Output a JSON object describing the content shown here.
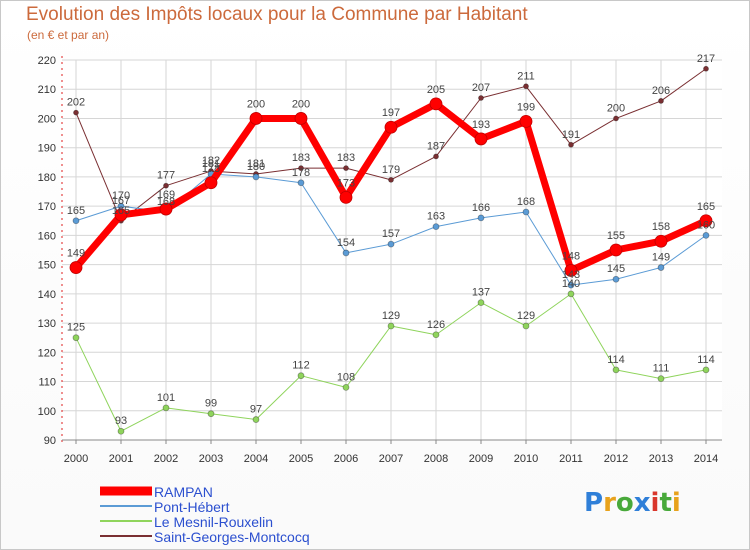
{
  "header": {
    "title": "Evolution des Impôts locaux pour la Commune par Habitant",
    "subtitle": "(en € et par an)"
  },
  "logo": {
    "text": "Proxiti",
    "colors": [
      "#2f7fd8",
      "#e8a21c",
      "#48a93a",
      "#2f7fd8",
      "#d9362b",
      "#48a93a",
      "#e8a21c"
    ]
  },
  "chart_data": {
    "type": "line",
    "title": "Evolution des Impôts locaux pour la Commune par Habitant",
    "subtitle": "(en € et par an)",
    "xlabel": "",
    "ylabel": "",
    "x": [
      "2000",
      "2001",
      "2002",
      "2003",
      "2004",
      "2005",
      "2006",
      "2007",
      "2008",
      "2009",
      "2010",
      "2011",
      "2012",
      "2013",
      "2014"
    ],
    "ylim": [
      90,
      220
    ],
    "yticks": [
      90,
      100,
      110,
      120,
      130,
      140,
      150,
      160,
      170,
      180,
      190,
      200,
      210,
      220
    ],
    "grid": true,
    "legend_position": "bottom-left",
    "series": [
      {
        "name": "Saint-Georges-Montcocq",
        "color": "#7a2f32",
        "width": 1,
        "marker": 2.5,
        "values": [
          202,
          165,
          177,
          182,
          181,
          183,
          183,
          179,
          187,
          207,
          211,
          191,
          200,
          206,
          217
        ]
      },
      {
        "name": "Le Mesnil-Rouxelin",
        "color": "#8fd45c",
        "width": 1,
        "marker": 3,
        "values": [
          125,
          93,
          101,
          99,
          97,
          112,
          108,
          129,
          126,
          137,
          129,
          140,
          114,
          111,
          114
        ]
      },
      {
        "name": "Pont-Hébert",
        "color": "#5b9bd5",
        "width": 1,
        "marker": 3,
        "values": [
          165,
          170,
          168,
          181,
          180,
          178,
          154,
          157,
          163,
          166,
          168,
          143,
          145,
          149,
          160
        ]
      },
      {
        "name": "RAMPAN",
        "color": "#ff0000",
        "width": 7,
        "marker": 6,
        "values": [
          149,
          167,
          169,
          178,
          200,
          200,
          173,
          197,
          205,
          193,
          199,
          148,
          155,
          158,
          165
        ]
      }
    ],
    "data_labels": [
      [
        "202",
        "165",
        "177",
        "182",
        "181",
        "183",
        "183",
        "179",
        "187",
        "207",
        "211",
        "191",
        "200",
        "206",
        "217"
      ],
      [
        "125",
        "93",
        "101",
        "99",
        "97",
        "112",
        "108",
        "129",
        "126",
        "137",
        "129",
        "140",
        "114",
        "111",
        "114"
      ],
      [
        "165",
        "170",
        "168",
        "181",
        "180",
        "178",
        "154",
        "157",
        "163",
        "166",
        "168",
        "143",
        "145",
        "149",
        "160"
      ],
      [
        "149",
        "167",
        "169",
        "178",
        "200",
        "200",
        "173",
        "197",
        "205",
        "193",
        "199",
        "148",
        "155",
        "158",
        "165"
      ]
    ],
    "legend": [
      "RAMPAN",
      "Pont-Hébert",
      "Le Mesnil-Rouxelin",
      "Saint-Georges-Montcocq"
    ]
  }
}
